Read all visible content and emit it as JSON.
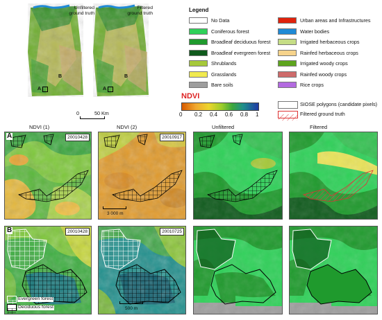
{
  "overview": {
    "unfiltered_label": "Unfiltered ground truth",
    "filtered_label": "Filtered ground truth",
    "marker_b": "B",
    "marker_a": "A",
    "scale_start": "0",
    "scale_end": "50 Km"
  },
  "legend": {
    "title": "Legend",
    "items": [
      {
        "label": "No Data",
        "color": "#ffffff"
      },
      {
        "label": "Coniferous forest",
        "color": "#2fd159"
      },
      {
        "label": "Broadleaf deciduous forest",
        "color": "#1f9a2d"
      },
      {
        "label": "Broadleaf evergreen forest",
        "color": "#0f5a1c"
      },
      {
        "label": "Shrublands",
        "color": "#a6c93a"
      },
      {
        "label": "Grasslands",
        "color": "#f1ea4f"
      },
      {
        "label": "Bare soils",
        "color": "#9e9e9e"
      },
      {
        "label": "Urban areas and Infrastructures",
        "color": "#e0220c"
      },
      {
        "label": "Water bodies",
        "color": "#1f8ad6"
      },
      {
        "label": "Irrigated herbaceous crops",
        "color": "#c5dd86"
      },
      {
        "label": "Rainfed herbaceous crops",
        "color": "#f6d38b"
      },
      {
        "label": "Irrigated woody crops",
        "color": "#5ea51e"
      },
      {
        "label": "Rainfed woody crops",
        "color": "#ce6b6b"
      },
      {
        "label": "Rice crops",
        "color": "#b36be0"
      }
    ],
    "siose_label": "SIOSE polygons (candidate pixels)",
    "filtered_gt_label": "Filtered ground truth"
  },
  "ndvi_scale": {
    "title": "NDVI",
    "ticks": [
      "0",
      "0.2",
      "0.4",
      "0.6",
      "0.8",
      "1"
    ]
  },
  "columns": {
    "ndvi1": "NDVI (1)",
    "ndvi2": "NDVI (2)",
    "unfiltered": "Unfiltered",
    "filtered": "Filtered"
  },
  "row_a": {
    "letter": "A",
    "date1": "20010428",
    "date2": "20010917",
    "scale": "3 000 m"
  },
  "row_b": {
    "letter": "B",
    "date1": "20010428",
    "date2": "20010725",
    "scale": "500 m",
    "evergreen_label": "Evergreen forest",
    "deciduous_label": "Deciduous forest"
  }
}
